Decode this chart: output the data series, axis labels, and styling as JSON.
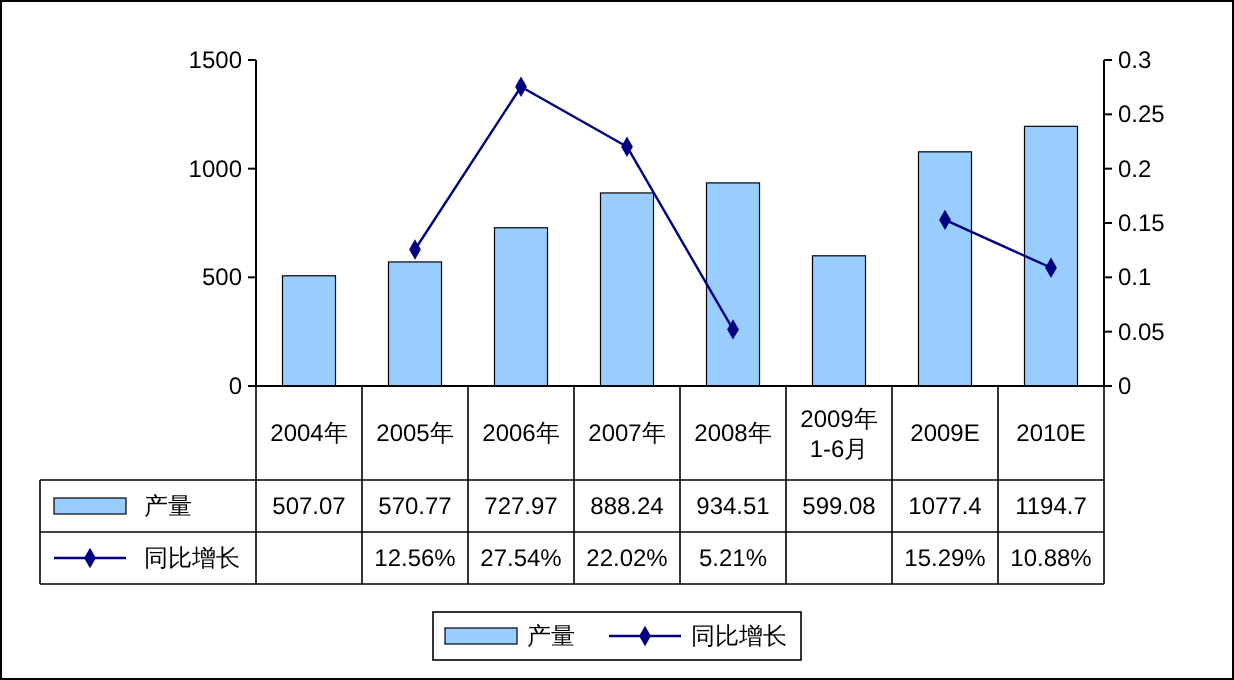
{
  "chart_data": {
    "type": "bar",
    "categories": [
      "2004年",
      "2005年",
      "2006年",
      "2007年",
      "2008年",
      "2009年\n1-6月",
      "2009E",
      "2010E"
    ],
    "series": [
      {
        "name": "产量",
        "color": "#99ccff",
        "values": [
          507.07,
          570.77,
          727.97,
          888.24,
          934.51,
          599.08,
          1077.4,
          1194.7
        ]
      },
      {
        "name": "同比增长",
        "type": "line",
        "axis": "y2",
        "color": "#000080",
        "marker": "diamond",
        "values": [
          null,
          0.1256,
          0.2754,
          0.2202,
          0.0521,
          null,
          0.1529,
          0.1088
        ],
        "value_labels": [
          null,
          "12.56%",
          "27.54%",
          "22.02%",
          "5.21%",
          null,
          "15.29%",
          "10.88%"
        ]
      }
    ],
    "ylim": [
      0,
      1500
    ],
    "yticks": [
      0,
      500,
      1000,
      1500
    ],
    "y2lim": [
      0,
      0.3
    ],
    "y2ticks": [
      0,
      0.05,
      0.1,
      0.15,
      0.2,
      0.25,
      0.3
    ],
    "data_labels": true,
    "grid": false,
    "legend": "bottom"
  }
}
